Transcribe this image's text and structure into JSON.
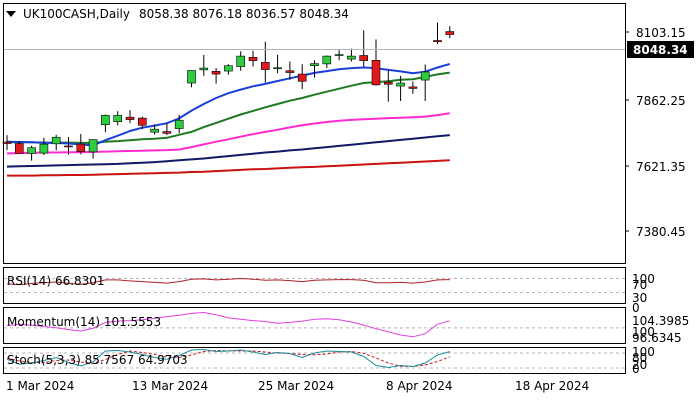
{
  "header": {
    "symbol": "UK100CASH,Daily",
    "ohlc": "8058.38 8076.18 8036.57 8048.34",
    "icon": "chevron-down-icon"
  },
  "colors": {
    "bull": "#2ecc40",
    "bear": "#e0191c",
    "wick": "#000000",
    "sma_fast": "#1a3fd9",
    "sma_mid": "#1e7a1e",
    "sma_slow": "#ff2bd0",
    "sma_navy": "#111a66",
    "sma_red": "#cc1111",
    "rsi": "#b0202a",
    "momentum": "#e040e0",
    "stoch_main": "#1a8c9c",
    "stoch_signal": "#c01e1e",
    "price_label_bg": "#000000",
    "price_label_text": "#ffffff",
    "level_line": "#b4b4b4"
  },
  "price_axis": {
    "ticks": [
      "8103.15",
      "7862.25",
      "7621.35",
      "7380.45"
    ],
    "current_price": "8048.34"
  },
  "panels": {
    "rsi": {
      "label": "RSI(14) 66.8301",
      "ticks": [
        "100",
        "70",
        "30",
        "0"
      ]
    },
    "momentum": {
      "label": "Momentum(14) 101.5553",
      "ticks": [
        "104.3985",
        "100",
        "96.6345"
      ]
    },
    "stoch": {
      "label": "Stoch(5,3,3) 85.7567 64.9703",
      "ticks": [
        "100",
        "80",
        "20",
        "0"
      ]
    }
  },
  "x_axis": {
    "labels": [
      "1 Mar 2024",
      "13 Mar 2024",
      "25 Mar 2024",
      "8 Apr 2024",
      "18 Apr 2024"
    ]
  },
  "chart_data": {
    "type": "candlestick",
    "title": "UK100CASH,Daily",
    "dates": [
      "2024-02-29",
      "2024-03-01",
      "2024-03-04",
      "2024-03-05",
      "2024-03-06",
      "2024-03-07",
      "2024-03-08",
      "2024-03-11",
      "2024-03-12",
      "2024-03-13",
      "2024-03-14",
      "2024-03-15",
      "2024-03-18",
      "2024-03-19",
      "2024-03-20",
      "2024-03-21",
      "2024-03-22",
      "2024-03-25",
      "2024-03-26",
      "2024-03-27",
      "2024-03-28",
      "2024-04-02",
      "2024-04-03",
      "2024-04-04",
      "2024-04-05",
      "2024-04-08",
      "2024-04-09",
      "2024-04-10",
      "2024-04-11",
      "2024-04-12",
      "2024-04-15",
      "2024-04-16",
      "2024-04-17",
      "2024-04-18",
      "2024-04-19",
      "2024-04-22",
      "2024-04-23"
    ],
    "open": [
      7689,
      7684,
      7651,
      7652,
      7683,
      7676,
      7682,
      7656,
      7747,
      7757,
      7772,
      7769,
      7722,
      7724,
      7734,
      7886,
      7930,
      7925,
      7926,
      7941,
      7972,
      7955,
      7935,
      7927,
      7916,
      7944,
      7950,
      7978,
      7966,
      7978,
      7962,
      7889,
      7876,
      7873,
      7896,
      8028,
      8058
    ],
    "high": [
      7712,
      7692,
      7676,
      7703,
      7713,
      7706,
      7716,
      7698,
      7781,
      7792,
      7796,
      7774,
      7748,
      7751,
      7780,
      7926,
      7980,
      7936,
      7949,
      7992,
      7994,
      8024,
      7980,
      7958,
      7949,
      7962,
      7978,
      7996,
      8001,
      8062,
      8032,
      7930,
      7910,
      7891,
      7948,
      8088,
      8076
    ],
    "low": [
      7662,
      7655,
      7627,
      7646,
      7661,
      7647,
      7648,
      7634,
      7722,
      7745,
      7752,
      7732,
      7714,
      7712,
      7718,
      7872,
      7910,
      7884,
      7914,
      7927,
      7941,
      7887,
      7919,
      7897,
      7866,
      7904,
      7936,
      7962,
      7958,
      7940,
      7877,
      7824,
      7826,
      7850,
      7826,
      8016,
      8036
    ],
    "close": [
      7684,
      7651,
      7670,
      7682,
      7705,
      7675,
      7657,
      7697,
      7778,
      7778,
      7764,
      7745,
      7732,
      7718,
      7762,
      7928,
      7936,
      7916,
      7944,
      7976,
      7961,
      7931,
      7937,
      7921,
      7892,
      7951,
      7976,
      7981,
      7976,
      7961,
      7880,
      7882,
      7886,
      7868,
      7923,
      8024,
      8048
    ],
    "indicators": {
      "sma_fast": [
        7690,
        7689,
        7688,
        7686,
        7686,
        7684,
        7681,
        7678,
        7695,
        7710,
        7726,
        7737,
        7744,
        7752,
        7768,
        7794,
        7816,
        7836,
        7852,
        7864,
        7875,
        7883,
        7893,
        7902,
        7911,
        7920,
        7926,
        7932,
        7936,
        7938,
        7936,
        7930,
        7925,
        7919,
        7924,
        7938,
        7950
      ],
      "sma_mid": [
        7688,
        7688,
        7688,
        7687,
        7687,
        7687,
        7686,
        7686,
        7690,
        7692,
        7695,
        7698,
        7700,
        7703,
        7713,
        7723,
        7739,
        7753,
        7767,
        7781,
        7793,
        7805,
        7816,
        7827,
        7836,
        7847,
        7857,
        7867,
        7877,
        7886,
        7889,
        7892,
        7897,
        7899,
        7907,
        7915,
        7921
      ],
      "sma_slow": [
        7651,
        7652,
        7653,
        7654,
        7654,
        7655,
        7655,
        7656,
        7657,
        7658,
        7659,
        7660,
        7661,
        7662,
        7664,
        7672,
        7681,
        7690,
        7698,
        7707,
        7715,
        7723,
        7730,
        7738,
        7745,
        7751,
        7756,
        7760,
        7763,
        7765,
        7767,
        7769,
        7770,
        7772,
        7774,
        7779,
        7785
      ],
      "sma_navy": [
        7607,
        7608,
        7609,
        7610,
        7611,
        7612,
        7613,
        7614,
        7615,
        7616,
        7618,
        7620,
        7622,
        7625,
        7628,
        7631,
        7634,
        7638,
        7642,
        7646,
        7650,
        7654,
        7657,
        7661,
        7664,
        7668,
        7672,
        7676,
        7680,
        7684,
        7688,
        7692,
        7696,
        7700,
        7704,
        7708,
        7712
      ],
      "sma_red": [
        7577,
        7577,
        7577,
        7578,
        7578,
        7579,
        7579,
        7580,
        7581,
        7582,
        7583,
        7584,
        7585,
        7586,
        7587,
        7589,
        7590,
        7592,
        7594,
        7596,
        7598,
        7599,
        7601,
        7603,
        7605,
        7606,
        7608,
        7610,
        7612,
        7614,
        7616,
        7618,
        7620,
        7622,
        7624,
        7626,
        7628
      ]
    },
    "rsi": [
      55,
      52,
      56,
      58,
      60,
      56,
      53,
      58,
      66,
      66,
      63,
      61,
      59,
      57,
      61,
      68,
      69,
      66,
      68,
      70,
      68,
      65,
      66,
      64,
      61,
      65,
      66,
      67,
      67,
      65,
      58,
      58,
      59,
      57,
      60,
      66,
      66.8301
    ],
    "momentum": [
      100.5,
      100.8,
      100.6,
      100.3,
      100.0,
      99.6,
      99.3,
      99.9,
      101.2,
      101.5,
      101.6,
      101.8,
      102.1,
      102.5,
      102.8,
      103.2,
      103.4,
      102.9,
      102.2,
      101.9,
      101.6,
      101.4,
      101.0,
      101.2,
      101.5,
      101.9,
      102.0,
      101.8,
      101.3,
      100.6,
      99.8,
      99.1,
      98.4,
      98.0,
      98.7,
      100.8,
      101.5553
    ],
    "stoch_main": [
      55,
      35,
      40,
      50,
      62,
      42,
      28,
      45,
      88,
      90,
      84,
      74,
      62,
      55,
      70,
      92,
      94,
      86,
      88,
      92,
      84,
      74,
      82,
      78,
      62,
      80,
      88,
      86,
      84,
      66,
      30,
      22,
      30,
      26,
      40,
      72,
      85.7567
    ],
    "stoch_signal": [
      60,
      48,
      42,
      42,
      50,
      52,
      44,
      38,
      54,
      74,
      88,
      82,
      74,
      64,
      62,
      72,
      86,
      90,
      89,
      88,
      88,
      84,
      80,
      78,
      74,
      73,
      76,
      84,
      86,
      79,
      60,
      40,
      27,
      26,
      32,
      46,
      64.9703
    ],
    "ylim": [
      7285,
      8150
    ],
    "rsi_ylim": [
      0,
      100
    ],
    "momentum_ylim": [
      96.6345,
      104.3985
    ],
    "stoch_ylim": [
      0,
      100
    ]
  }
}
